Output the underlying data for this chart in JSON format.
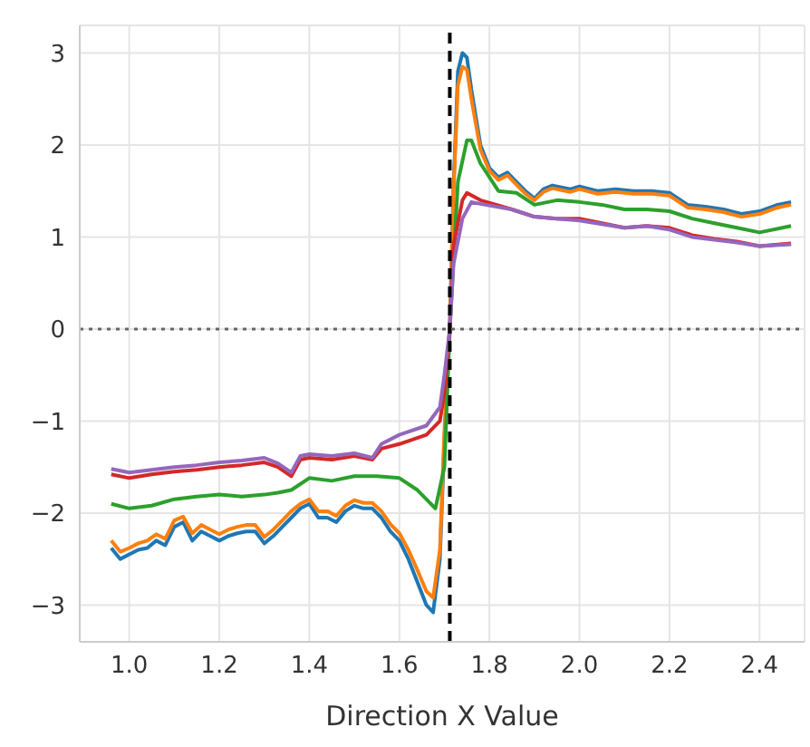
{
  "chart_data": {
    "type": "line",
    "xlabel": "Direction X Value",
    "xlim": [
      0.89,
      2.5
    ],
    "ylim": [
      -3.4,
      3.3
    ],
    "xticks": [
      {
        "value": 1,
        "label": "1.0"
      },
      {
        "value": 1.2,
        "label": "1.2"
      },
      {
        "value": 1.4,
        "label": "1.4"
      },
      {
        "value": 1.6,
        "label": "1.6"
      },
      {
        "value": 1.8,
        "label": "1.8"
      },
      {
        "value": 2,
        "label": "2.0"
      },
      {
        "value": 2.2,
        "label": "2.2"
      },
      {
        "value": 2.4,
        "label": "2.4"
      }
    ],
    "yticks": [
      {
        "value": -3,
        "label": "−3"
      },
      {
        "value": -2,
        "label": "−2"
      },
      {
        "value": -1,
        "label": "−1"
      },
      0,
      1,
      2,
      3
    ],
    "grid": true,
    "marker": "none",
    "line_style": "solid",
    "ref_lines": [
      {
        "axis": "x",
        "value": 1.712,
        "color": "#000000",
        "line_style": "dashed"
      },
      {
        "axis": "y",
        "value": 0,
        "color": "#666666",
        "line_style": "dotted"
      }
    ],
    "series": [
      {
        "color": "#1f77b4",
        "x": [
          0.96,
          0.98,
          1.0,
          1.02,
          1.04,
          1.06,
          1.08,
          1.1,
          1.12,
          1.14,
          1.16,
          1.18,
          1.2,
          1.22,
          1.24,
          1.26,
          1.28,
          1.3,
          1.32,
          1.34,
          1.36,
          1.38,
          1.4,
          1.42,
          1.44,
          1.46,
          1.48,
          1.5,
          1.52,
          1.54,
          1.56,
          1.58,
          1.6,
          1.62,
          1.64,
          1.66,
          1.675,
          1.69,
          1.7,
          1.712,
          1.72,
          1.73,
          1.74,
          1.75,
          1.76,
          1.78,
          1.8,
          1.82,
          1.84,
          1.86,
          1.88,
          1.9,
          1.92,
          1.94,
          1.96,
          1.98,
          2.0,
          2.04,
          2.08,
          2.12,
          2.16,
          2.2,
          2.24,
          2.28,
          2.32,
          2.36,
          2.4,
          2.44,
          2.47
        ],
        "values": [
          -2.38,
          -2.5,
          -2.45,
          -2.4,
          -2.38,
          -2.3,
          -2.35,
          -2.15,
          -2.1,
          -2.3,
          -2.2,
          -2.25,
          -2.3,
          -2.25,
          -2.22,
          -2.2,
          -2.2,
          -2.33,
          -2.25,
          -2.15,
          -2.05,
          -1.95,
          -1.9,
          -2.05,
          -2.05,
          -2.1,
          -1.98,
          -1.92,
          -1.95,
          -1.95,
          -2.05,
          -2.2,
          -2.3,
          -2.5,
          -2.75,
          -3.0,
          -3.08,
          -2.5,
          -1.2,
          0,
          1.5,
          2.8,
          3.0,
          2.95,
          2.6,
          2.0,
          1.75,
          1.65,
          1.7,
          1.6,
          1.5,
          1.42,
          1.52,
          1.56,
          1.54,
          1.52,
          1.55,
          1.5,
          1.52,
          1.5,
          1.5,
          1.48,
          1.35,
          1.33,
          1.3,
          1.25,
          1.28,
          1.35,
          1.38
        ]
      },
      {
        "color": "#ff7f0e",
        "x": [
          0.96,
          0.98,
          1.0,
          1.02,
          1.04,
          1.06,
          1.08,
          1.1,
          1.12,
          1.14,
          1.16,
          1.18,
          1.2,
          1.22,
          1.24,
          1.26,
          1.28,
          1.3,
          1.32,
          1.34,
          1.36,
          1.38,
          1.4,
          1.42,
          1.44,
          1.46,
          1.48,
          1.5,
          1.52,
          1.54,
          1.56,
          1.58,
          1.6,
          1.62,
          1.64,
          1.66,
          1.675,
          1.69,
          1.7,
          1.712,
          1.72,
          1.73,
          1.74,
          1.75,
          1.76,
          1.78,
          1.8,
          1.82,
          1.84,
          1.86,
          1.88,
          1.9,
          1.92,
          1.94,
          1.96,
          1.98,
          2.0,
          2.04,
          2.08,
          2.12,
          2.16,
          2.2,
          2.24,
          2.28,
          2.32,
          2.36,
          2.4,
          2.44,
          2.47
        ],
        "values": [
          -2.3,
          -2.42,
          -2.38,
          -2.33,
          -2.3,
          -2.23,
          -2.28,
          -2.08,
          -2.04,
          -2.22,
          -2.13,
          -2.18,
          -2.23,
          -2.18,
          -2.15,
          -2.13,
          -2.13,
          -2.26,
          -2.18,
          -2.08,
          -1.98,
          -1.9,
          -1.85,
          -1.98,
          -1.98,
          -2.03,
          -1.92,
          -1.86,
          -1.89,
          -1.89,
          -1.98,
          -2.12,
          -2.22,
          -2.4,
          -2.62,
          -2.85,
          -2.92,
          -2.4,
          -1.1,
          0,
          1.45,
          2.65,
          2.85,
          2.82,
          2.5,
          1.95,
          1.72,
          1.62,
          1.67,
          1.57,
          1.47,
          1.4,
          1.49,
          1.53,
          1.51,
          1.49,
          1.52,
          1.47,
          1.49,
          1.47,
          1.47,
          1.45,
          1.32,
          1.3,
          1.27,
          1.22,
          1.25,
          1.32,
          1.35
        ]
      },
      {
        "color": "#2ca02c",
        "x": [
          0.96,
          1.0,
          1.05,
          1.1,
          1.15,
          1.2,
          1.25,
          1.3,
          1.33,
          1.36,
          1.4,
          1.45,
          1.5,
          1.55,
          1.6,
          1.64,
          1.68,
          1.7,
          1.712,
          1.73,
          1.75,
          1.76,
          1.78,
          1.82,
          1.86,
          1.9,
          1.95,
          2.0,
          2.05,
          2.1,
          2.15,
          2.2,
          2.25,
          2.3,
          2.35,
          2.4,
          2.47
        ],
        "values": [
          -1.9,
          -1.95,
          -1.92,
          -1.85,
          -1.82,
          -1.8,
          -1.82,
          -1.8,
          -1.78,
          -1.75,
          -1.62,
          -1.65,
          -1.6,
          -1.6,
          -1.62,
          -1.75,
          -1.95,
          -1.5,
          0,
          1.6,
          2.05,
          2.05,
          1.8,
          1.5,
          1.48,
          1.35,
          1.4,
          1.38,
          1.35,
          1.3,
          1.3,
          1.28,
          1.2,
          1.15,
          1.1,
          1.05,
          1.12
        ]
      },
      {
        "color": "#d62728",
        "x": [
          0.96,
          1.0,
          1.05,
          1.1,
          1.15,
          1.2,
          1.25,
          1.3,
          1.33,
          1.36,
          1.38,
          1.4,
          1.45,
          1.5,
          1.54,
          1.56,
          1.6,
          1.66,
          1.69,
          1.7,
          1.712,
          1.72,
          1.74,
          1.75,
          1.78,
          1.85,
          1.9,
          1.95,
          2.0,
          2.05,
          2.1,
          2.15,
          2.2,
          2.25,
          2.3,
          2.35,
          2.4,
          2.47
        ],
        "values": [
          -1.58,
          -1.62,
          -1.58,
          -1.55,
          -1.53,
          -1.5,
          -1.48,
          -1.45,
          -1.5,
          -1.6,
          -1.42,
          -1.4,
          -1.42,
          -1.38,
          -1.42,
          -1.3,
          -1.25,
          -1.15,
          -1.0,
          -0.7,
          0,
          0.9,
          1.4,
          1.48,
          1.4,
          1.3,
          1.22,
          1.2,
          1.2,
          1.15,
          1.1,
          1.12,
          1.1,
          1.02,
          0.98,
          0.95,
          0.9,
          0.93
        ]
      },
      {
        "color": "#9467bd",
        "x": [
          0.96,
          1.0,
          1.05,
          1.1,
          1.15,
          1.2,
          1.25,
          1.3,
          1.33,
          1.36,
          1.38,
          1.4,
          1.45,
          1.5,
          1.54,
          1.56,
          1.6,
          1.66,
          1.69,
          1.7,
          1.712,
          1.72,
          1.74,
          1.76,
          1.78,
          1.85,
          1.9,
          1.95,
          2.0,
          2.05,
          2.1,
          2.15,
          2.2,
          2.25,
          2.3,
          2.35,
          2.4,
          2.47
        ],
        "values": [
          -1.52,
          -1.56,
          -1.53,
          -1.5,
          -1.48,
          -1.45,
          -1.43,
          -1.4,
          -1.46,
          -1.56,
          -1.38,
          -1.36,
          -1.38,
          -1.35,
          -1.4,
          -1.25,
          -1.15,
          -1.05,
          -0.85,
          -0.5,
          0,
          0.7,
          1.2,
          1.38,
          1.36,
          1.3,
          1.22,
          1.2,
          1.18,
          1.14,
          1.1,
          1.12,
          1.08,
          1.0,
          0.97,
          0.94,
          0.9,
          0.92
        ]
      }
    ]
  }
}
